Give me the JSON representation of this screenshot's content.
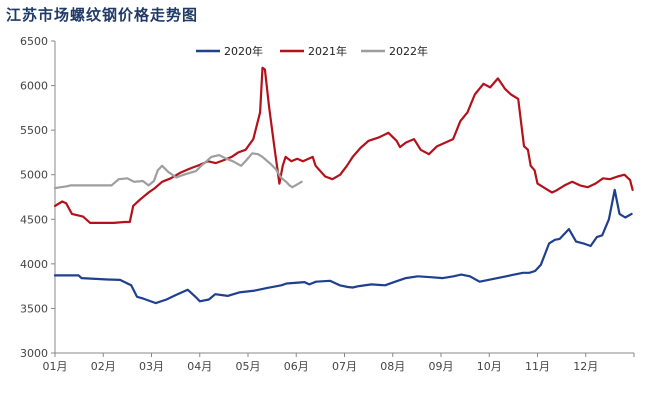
{
  "title": "江苏市场螺纹钢价格走势图",
  "chart_data": {
    "type": "line",
    "title": "江苏市场螺纹钢价格走势图",
    "xlabel": "",
    "ylabel": "",
    "ylim": [
      3000,
      6500
    ],
    "yticks": [
      3000,
      3500,
      4000,
      4500,
      5000,
      5500,
      6000,
      6500
    ],
    "xlim": [
      1,
      13
    ],
    "xtick_labels": [
      "01月",
      "02月",
      "03月",
      "04月",
      "05月",
      "06月",
      "07月",
      "08月",
      "09月",
      "10月",
      "11月",
      "12月"
    ],
    "grid": false,
    "legend_position": "top",
    "series": [
      {
        "name": "2020年",
        "color": "#1f3f8f",
        "x": [
          1.0,
          1.49,
          1.55,
          2.09,
          2.35,
          2.58,
          2.7,
          2.83,
          3.09,
          3.31,
          3.5,
          3.75,
          3.93,
          4.0,
          4.19,
          4.32,
          4.58,
          4.82,
          5.14,
          5.4,
          5.69,
          5.8,
          6.17,
          6.27,
          6.41,
          6.7,
          6.9,
          7.07,
          7.17,
          7.3,
          7.56,
          7.84,
          8.05,
          8.27,
          8.52,
          8.79,
          9.04,
          9.26,
          9.42,
          9.6,
          9.8,
          9.98,
          10.26,
          10.52,
          10.7,
          10.83,
          10.95,
          11.07,
          11.24,
          11.36,
          11.46,
          11.65,
          11.8,
          11.95,
          12.1,
          12.23,
          12.34,
          12.48,
          12.6,
          12.7,
          12.82,
          12.95
        ],
        "values": [
          3870,
          3870,
          3840,
          3825,
          3820,
          3760,
          3630,
          3610,
          3560,
          3600,
          3650,
          3710,
          3620,
          3580,
          3600,
          3660,
          3640,
          3680,
          3700,
          3730,
          3760,
          3780,
          3795,
          3770,
          3800,
          3810,
          3760,
          3740,
          3735,
          3750,
          3770,
          3760,
          3800,
          3840,
          3860,
          3850,
          3840,
          3860,
          3880,
          3860,
          3800,
          3820,
          3850,
          3880,
          3900,
          3900,
          3920,
          3990,
          4230,
          4270,
          4280,
          4390,
          4250,
          4230,
          4200,
          4300,
          4320,
          4500,
          4830,
          4560,
          4520,
          4560
        ]
      },
      {
        "name": "2021年",
        "color": "#b3121b",
        "x": [
          1.0,
          1.15,
          1.23,
          1.35,
          1.58,
          1.73,
          2.08,
          2.22,
          2.44,
          2.55,
          2.62,
          2.76,
          2.94,
          3.07,
          3.22,
          3.4,
          3.59,
          3.8,
          4.0,
          4.17,
          4.33,
          4.48,
          4.66,
          4.8,
          4.95,
          5.11,
          5.25,
          5.3,
          5.35,
          5.44,
          5.55,
          5.65,
          5.72,
          5.78,
          5.9,
          6.02,
          6.14,
          6.34,
          6.4,
          6.6,
          6.75,
          6.91,
          7.05,
          7.17,
          7.33,
          7.5,
          7.72,
          7.91,
          8.08,
          8.15,
          8.27,
          8.44,
          8.58,
          8.75,
          8.92,
          9.09,
          9.25,
          9.4,
          9.55,
          9.7,
          9.88,
          10.02,
          10.18,
          10.33,
          10.45,
          10.6,
          10.72,
          10.8,
          10.86,
          10.94,
          11.0,
          11.15,
          11.3,
          11.38,
          11.56,
          11.72,
          11.88,
          12.04,
          12.2,
          12.36,
          12.5,
          12.66,
          12.8,
          12.92,
          12.97
        ],
        "values": [
          4650,
          4700,
          4680,
          4560,
          4530,
          4460,
          4460,
          4460,
          4470,
          4470,
          4650,
          4720,
          4800,
          4850,
          4920,
          4960,
          5020,
          5070,
          5110,
          5150,
          5130,
          5160,
          5200,
          5250,
          5280,
          5400,
          5700,
          6200,
          6180,
          5750,
          5300,
          4900,
          5100,
          5200,
          5150,
          5180,
          5150,
          5200,
          5100,
          4980,
          4950,
          5000,
          5100,
          5200,
          5300,
          5380,
          5420,
          5470,
          5380,
          5310,
          5360,
          5400,
          5280,
          5230,
          5320,
          5360,
          5400,
          5600,
          5700,
          5900,
          6020,
          5980,
          6080,
          5960,
          5900,
          5850,
          5320,
          5280,
          5100,
          5050,
          4900,
          4850,
          4800,
          4820,
          4880,
          4920,
          4880,
          4860,
          4900,
          4960,
          4950,
          4980,
          5000,
          4940,
          4830
        ]
      },
      {
        "name": "2022年",
        "color": "#9e9e9e",
        "x": [
          1.0,
          1.24,
          1.32,
          1.55,
          1.75,
          2.05,
          2.17,
          2.32,
          2.5,
          2.64,
          2.82,
          2.94,
          3.05,
          3.13,
          3.22,
          3.35,
          3.51,
          3.67,
          3.79,
          3.92,
          4.03,
          4.12,
          4.24,
          4.4,
          4.55,
          4.69,
          4.86,
          4.96,
          5.09,
          5.21,
          5.3,
          5.47,
          5.58,
          5.68,
          5.79,
          5.86,
          5.92,
          6.05,
          6.11
        ],
        "values": [
          4850,
          4870,
          4880,
          4880,
          4880,
          4880,
          4880,
          4950,
          4960,
          4920,
          4930,
          4880,
          4930,
          5050,
          5100,
          5030,
          4970,
          5000,
          5020,
          5040,
          5100,
          5140,
          5200,
          5220,
          5180,
          5150,
          5100,
          5160,
          5240,
          5230,
          5200,
          5120,
          5060,
          4970,
          4920,
          4880,
          4860,
          4900,
          4920
        ]
      }
    ]
  }
}
